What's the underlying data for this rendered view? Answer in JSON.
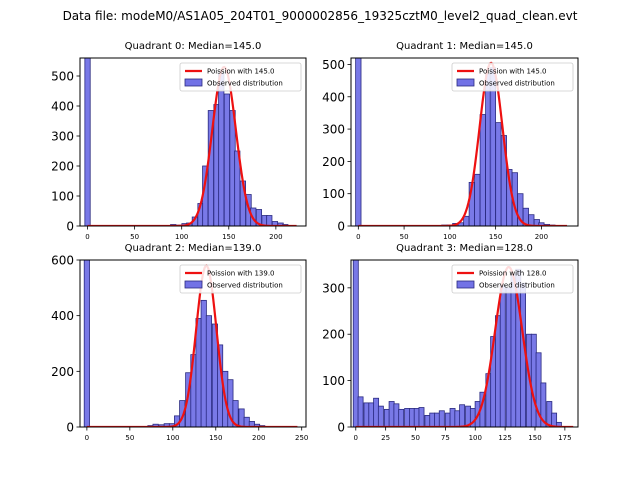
{
  "suptitle": "Data file: modeM0/AS1A05_204T01_9000002856_19325cztM0_level2_quad_clean.evt",
  "colors": {
    "bar_fill": "#7272e6",
    "bar_edge": "#2a2a80",
    "poisson_line": "#ee1111",
    "axes": "#000000"
  },
  "legend_labels": {
    "observed": "Observed distribution"
  },
  "chart_data": [
    {
      "type": "bar",
      "title": "Quadrant 0: Median=145.0",
      "median": 145.0,
      "poisson_label": "Poission with 145.0",
      "xlim": [
        -8,
        232
      ],
      "ylim": [
        0,
        560
      ],
      "xticks": [
        0,
        50,
        100,
        150,
        200
      ],
      "yticks": [
        0,
        100,
        200,
        300,
        400,
        500
      ],
      "bin_width": 5.7,
      "bars": [
        {
          "x": 0,
          "h": 560
        },
        {
          "x": 91,
          "h": 5
        },
        {
          "x": 97,
          "h": 3
        },
        {
          "x": 103,
          "h": 8
        },
        {
          "x": 108,
          "h": 10
        },
        {
          "x": 114,
          "h": 30
        },
        {
          "x": 120,
          "h": 75
        },
        {
          "x": 125,
          "h": 200
        },
        {
          "x": 131,
          "h": 385
        },
        {
          "x": 137,
          "h": 405
        },
        {
          "x": 142,
          "h": 510
        },
        {
          "x": 148,
          "h": 440
        },
        {
          "x": 154,
          "h": 385
        },
        {
          "x": 159,
          "h": 250
        },
        {
          "x": 165,
          "h": 150
        },
        {
          "x": 171,
          "h": 105
        },
        {
          "x": 176,
          "h": 60
        },
        {
          "x": 182,
          "h": 55
        },
        {
          "x": 188,
          "h": 35
        },
        {
          "x": 193,
          "h": 35
        },
        {
          "x": 199,
          "h": 15
        },
        {
          "x": 205,
          "h": 10
        },
        {
          "x": 210,
          "h": 5
        }
      ],
      "poisson_peak": 530,
      "poisson_sigma": 12.5,
      "poisson_x_range": [
        0,
        222
      ]
    },
    {
      "type": "bar",
      "title": "Quadrant 1: Median=145.0",
      "median": 145.0,
      "poisson_label": "Poission with 145.0",
      "xlim": [
        -8,
        240
      ],
      "ylim": [
        0,
        520
      ],
      "xticks": [
        0,
        50,
        100,
        150,
        200
      ],
      "yticks": [
        0,
        100,
        200,
        300,
        400,
        500
      ],
      "bin_width": 5.9,
      "bars": [
        {
          "x": 0,
          "h": 520
        },
        {
          "x": 94,
          "h": 3
        },
        {
          "x": 100,
          "h": 3
        },
        {
          "x": 106,
          "h": 8
        },
        {
          "x": 112,
          "h": 10
        },
        {
          "x": 118,
          "h": 30
        },
        {
          "x": 124,
          "h": 135
        },
        {
          "x": 130,
          "h": 160
        },
        {
          "x": 136,
          "h": 345
        },
        {
          "x": 142,
          "h": 470
        },
        {
          "x": 147,
          "h": 490
        },
        {
          "x": 153,
          "h": 320
        },
        {
          "x": 159,
          "h": 280
        },
        {
          "x": 165,
          "h": 175
        },
        {
          "x": 171,
          "h": 165
        },
        {
          "x": 177,
          "h": 100
        },
        {
          "x": 183,
          "h": 55
        },
        {
          "x": 189,
          "h": 35
        },
        {
          "x": 195,
          "h": 20
        },
        {
          "x": 200,
          "h": 10
        },
        {
          "x": 206,
          "h": 5
        },
        {
          "x": 212,
          "h": 3
        }
      ],
      "poisson_peak": 505,
      "poisson_sigma": 12.5,
      "poisson_x_range": [
        0,
        228
      ]
    },
    {
      "type": "bar",
      "title": "Quadrant 2: Median=139.0",
      "median": 139.0,
      "poisson_label": "Poission with 139.0",
      "xlim": [
        -8,
        255
      ],
      "ylim": [
        0,
        600
      ],
      "xticks": [
        0,
        50,
        100,
        150,
        200,
        250
      ],
      "yticks": [
        0,
        200,
        400,
        600
      ],
      "bin_width": 6.2,
      "bars": [
        {
          "x": 0,
          "h": 600
        },
        {
          "x": 74,
          "h": 5
        },
        {
          "x": 80,
          "h": 10
        },
        {
          "x": 87,
          "h": 8
        },
        {
          "x": 93,
          "h": 12
        },
        {
          "x": 99,
          "h": 12
        },
        {
          "x": 105,
          "h": 40
        },
        {
          "x": 111,
          "h": 95
        },
        {
          "x": 118,
          "h": 195
        },
        {
          "x": 124,
          "h": 260
        },
        {
          "x": 130,
          "h": 390
        },
        {
          "x": 136,
          "h": 455
        },
        {
          "x": 142,
          "h": 400
        },
        {
          "x": 149,
          "h": 370
        },
        {
          "x": 155,
          "h": 295
        },
        {
          "x": 161,
          "h": 200
        },
        {
          "x": 167,
          "h": 170
        },
        {
          "x": 173,
          "h": 95
        },
        {
          "x": 180,
          "h": 65
        },
        {
          "x": 186,
          "h": 35
        },
        {
          "x": 192,
          "h": 20
        },
        {
          "x": 198,
          "h": 10
        },
        {
          "x": 204,
          "h": 5
        }
      ],
      "poisson_peak": 580,
      "poisson_sigma": 11.8,
      "poisson_x_range": [
        0,
        245
      ]
    },
    {
      "type": "bar",
      "title": "Quadrant 3: Median=128.0",
      "median": 128.0,
      "poisson_label": "Poission with 128.0",
      "xlim": [
        -4,
        186
      ],
      "ylim": [
        0,
        360
      ],
      "xticks": [
        0,
        25,
        50,
        75,
        100,
        125,
        150,
        175
      ],
      "yticks": [
        0,
        100,
        200,
        300
      ],
      "bin_width": 4.25,
      "bars": [
        {
          "x": 0,
          "h": 360
        },
        {
          "x": 4,
          "h": 65
        },
        {
          "x": 9,
          "h": 52
        },
        {
          "x": 13,
          "h": 52
        },
        {
          "x": 17,
          "h": 62
        },
        {
          "x": 21,
          "h": 45
        },
        {
          "x": 26,
          "h": 38
        },
        {
          "x": 30,
          "h": 55
        },
        {
          "x": 34,
          "h": 50
        },
        {
          "x": 38,
          "h": 38
        },
        {
          "x": 43,
          "h": 40
        },
        {
          "x": 47,
          "h": 40
        },
        {
          "x": 51,
          "h": 40
        },
        {
          "x": 55,
          "h": 42
        },
        {
          "x": 60,
          "h": 25
        },
        {
          "x": 64,
          "h": 30
        },
        {
          "x": 68,
          "h": 30
        },
        {
          "x": 72,
          "h": 35
        },
        {
          "x": 77,
          "h": 30
        },
        {
          "x": 81,
          "h": 40
        },
        {
          "x": 85,
          "h": 35
        },
        {
          "x": 89,
          "h": 48
        },
        {
          "x": 94,
          "h": 45
        },
        {
          "x": 98,
          "h": 40
        },
        {
          "x": 102,
          "h": 55
        },
        {
          "x": 106,
          "h": 75
        },
        {
          "x": 111,
          "h": 115
        },
        {
          "x": 115,
          "h": 195
        },
        {
          "x": 119,
          "h": 240
        },
        {
          "x": 123,
          "h": 305
        },
        {
          "x": 128,
          "h": 300
        },
        {
          "x": 132,
          "h": 330
        },
        {
          "x": 136,
          "h": 340
        },
        {
          "x": 140,
          "h": 310
        },
        {
          "x": 145,
          "h": 200
        },
        {
          "x": 149,
          "h": 200
        },
        {
          "x": 153,
          "h": 160
        },
        {
          "x": 157,
          "h": 95
        },
        {
          "x": 162,
          "h": 55
        },
        {
          "x": 166,
          "h": 30
        },
        {
          "x": 170,
          "h": 10
        }
      ],
      "poisson_peak": 345,
      "poisson_sigma": 11.3,
      "poisson_x_range": [
        0,
        182
      ]
    }
  ]
}
